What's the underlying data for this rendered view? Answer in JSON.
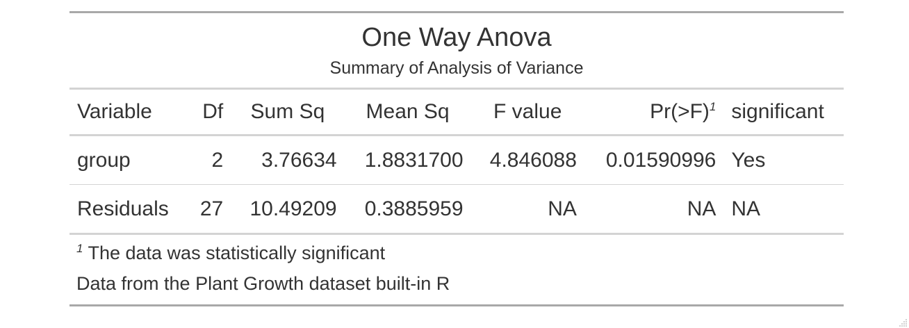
{
  "table": {
    "title": "One Way Anova",
    "subtitle": "Summary of Analysis of Variance",
    "columns": [
      "Variable",
      "Df",
      "Sum Sq",
      "Mean Sq",
      "F value",
      "Pr(>F)",
      "significant"
    ],
    "pr_footnote_mark": "1",
    "rows": [
      {
        "variable": "group",
        "df": "2",
        "sum_sq": "3.76634",
        "mean_sq": "1.8831700",
        "f_value": "4.846088",
        "pr_f": "0.01590996",
        "significant": "Yes"
      },
      {
        "variable": "Residuals",
        "df": "27",
        "sum_sq": "10.49209",
        "mean_sq": "0.3885959",
        "f_value": "NA",
        "pr_f": "NA",
        "significant": "NA"
      }
    ],
    "footnote": {
      "mark": "1",
      "text": "The data was statistically significant"
    },
    "source_note": "Data from the Plant Growth dataset built-in R"
  },
  "colors": {
    "text": "#333333",
    "outer_border": "#a8a8a8",
    "inner_border": "#d3d3d3"
  }
}
